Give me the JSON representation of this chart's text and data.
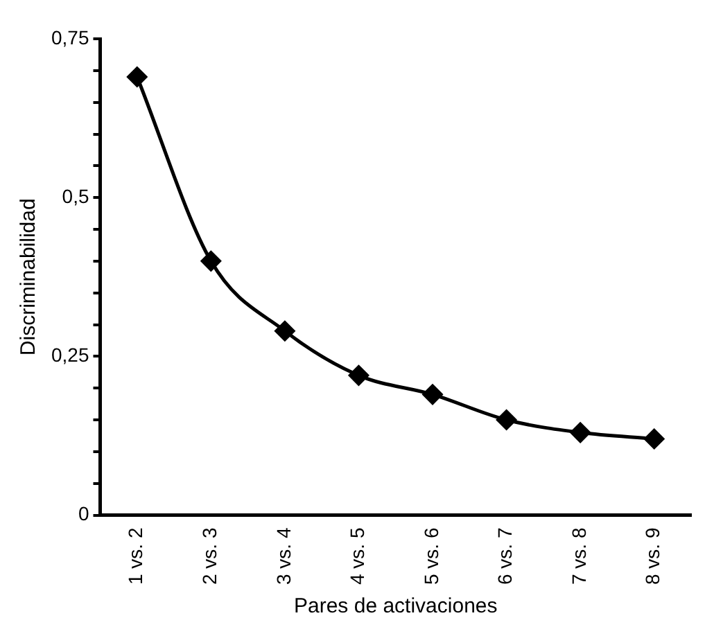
{
  "chart_data": {
    "type": "line",
    "xlabel": "Pares de activaciones",
    "ylabel": "Discriminabilidad",
    "categories": [
      "1 vs. 2",
      "2 vs. 3",
      "3 vs. 4",
      "4 vs. 5",
      "5 vs. 6",
      "6 vs. 7",
      "7 vs. 8",
      "8 vs. 9"
    ],
    "series": [
      {
        "color": "#000000",
        "values": [
          0.69,
          0.4,
          0.29,
          0.22,
          0.19,
          0.15,
          0.13,
          0.12
        ]
      }
    ],
    "ylim": [
      0,
      0.75
    ],
    "yticks": [
      {
        "value": 0,
        "label": "0"
      },
      {
        "value": 0.05,
        "label": null
      },
      {
        "value": 0.1,
        "label": null
      },
      {
        "value": 0.15,
        "label": null
      },
      {
        "value": 0.2,
        "label": null
      },
      {
        "value": 0.25,
        "label": "0,25"
      },
      {
        "value": 0.3,
        "label": null
      },
      {
        "value": 0.35,
        "label": null
      },
      {
        "value": 0.4,
        "label": null
      },
      {
        "value": 0.45,
        "label": null
      },
      {
        "value": 0.5,
        "label": "0,5"
      },
      {
        "value": 0.55,
        "label": null
      },
      {
        "value": 0.6,
        "label": null
      },
      {
        "value": 0.65,
        "label": null
      },
      {
        "value": 0.7,
        "label": null
      },
      {
        "value": 0.75,
        "label": "0,75"
      }
    ],
    "grid": false,
    "legend": false,
    "marker": "diamond",
    "line_style": "solid"
  }
}
